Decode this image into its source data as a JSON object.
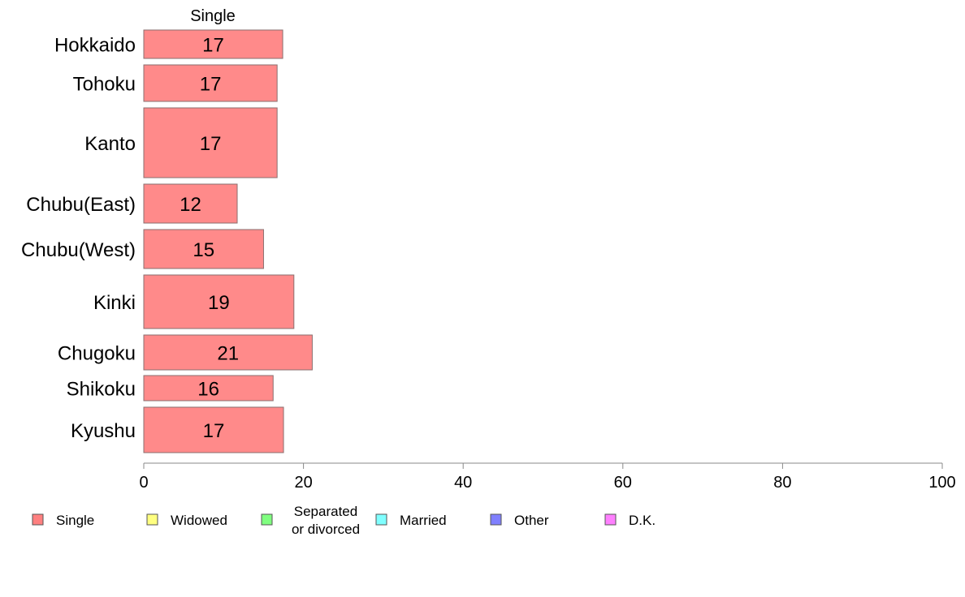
{
  "chart_data": {
    "type": "bar",
    "orientation": "horizontal",
    "series_header": "Single",
    "categories": [
      "Hokkaido",
      "Tohoku",
      "Kanto",
      "Chubu(East)",
      "Chubu(West)",
      "Kinki",
      "Chugoku",
      "Shikoku",
      "Kyushu"
    ],
    "series": [
      {
        "name": "Single",
        "color": "#ff8a8a",
        "values": [
          17.4,
          16.7,
          16.7,
          11.7,
          15.0,
          18.8,
          21.1,
          16.2,
          17.5
        ],
        "labels": [
          "17",
          "17",
          "17",
          "12",
          "15",
          "19",
          "21",
          "16",
          "17"
        ]
      }
    ],
    "xlim": [
      0,
      100
    ],
    "xticks": [
      0,
      20,
      40,
      60,
      80,
      100
    ],
    "grid": false,
    "legend_position": "bottom",
    "legend": [
      {
        "label": "Single",
        "color": "#ff8080"
      },
      {
        "label": "Widowed",
        "color": "#ffff80"
      },
      {
        "label": [
          "Separated",
          "or divorced"
        ],
        "color": "#80ff80"
      },
      {
        "label": "Married",
        "color": "#80ffff"
      },
      {
        "label": "Other",
        "color": "#8080ff"
      },
      {
        "label": "D.K.",
        "color": "#ff80ff"
      }
    ]
  }
}
